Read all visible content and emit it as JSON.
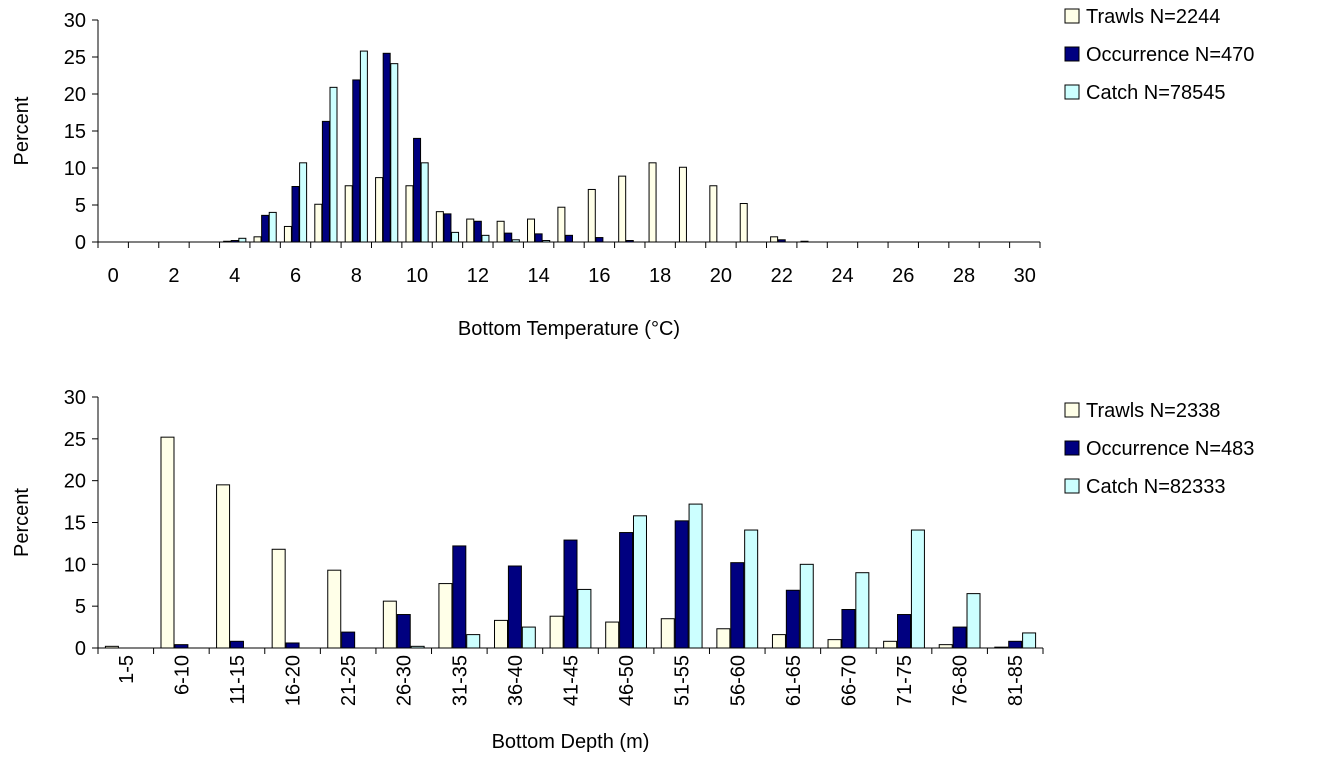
{
  "chart_data": [
    {
      "type": "bar",
      "title": "",
      "xlabel": "Bottom Temperature (°C)",
      "ylabel": "Percent",
      "ylim": [
        0,
        30
      ],
      "yticks": [
        0,
        5,
        10,
        15,
        20,
        25,
        30
      ],
      "xticks": [
        "0",
        "2",
        "4",
        "6",
        "8",
        "10",
        "12",
        "14",
        "16",
        "18",
        "20",
        "22",
        "24",
        "26",
        "28",
        "30"
      ],
      "categories": [
        "0",
        "1",
        "2",
        "3",
        "4",
        "5",
        "6",
        "7",
        "8",
        "9",
        "10",
        "11",
        "12",
        "13",
        "14",
        "15",
        "16",
        "17",
        "18",
        "19",
        "20",
        "21",
        "22",
        "23",
        "24",
        "25",
        "26",
        "27",
        "28",
        "29",
        "30"
      ],
      "grid": false,
      "legend_position": "top-right",
      "series": [
        {
          "name": "Trawls N=2244",
          "color": "#ffffe8",
          "values": [
            0,
            0,
            0,
            0,
            0.1,
            0.7,
            2.1,
            5.1,
            7.6,
            8.7,
            7.6,
            4.1,
            3.1,
            2.8,
            3.1,
            4.7,
            7.1,
            8.9,
            10.7,
            10.1,
            7.6,
            5.2,
            0.7,
            0.1,
            0,
            0,
            0,
            0,
            0,
            0,
            0
          ]
        },
        {
          "name": "Occurrence N=470",
          "color": "#000080",
          "values": [
            0,
            0,
            0,
            0,
            0.2,
            3.6,
            7.5,
            16.3,
            21.9,
            25.5,
            14.0,
            3.8,
            2.8,
            1.2,
            1.1,
            0.9,
            0.6,
            0.2,
            0,
            0,
            0,
            0,
            0.3,
            0,
            0,
            0,
            0,
            0,
            0,
            0,
            0
          ]
        },
        {
          "name": "Catch N=78545",
          "color": "#ccffff",
          "values": [
            0,
            0,
            0,
            0,
            0.5,
            4.0,
            10.7,
            20.9,
            25.8,
            24.1,
            10.7,
            1.3,
            0.9,
            0.3,
            0.2,
            0,
            0,
            0,
            0,
            0,
            0,
            0,
            0,
            0,
            0,
            0,
            0,
            0,
            0,
            0,
            0
          ]
        }
      ]
    },
    {
      "type": "bar",
      "title": "",
      "xlabel": "Bottom Depth (m)",
      "ylabel": "Percent",
      "ylim": [
        0,
        30
      ],
      "yticks": [
        0,
        5,
        10,
        15,
        20,
        25,
        30
      ],
      "categories": [
        "1-5",
        "6-10",
        "11-15",
        "16-20",
        "21-25",
        "26-30",
        "31-35",
        "36-40",
        "41-45",
        "46-50",
        "51-55",
        "56-60",
        "61-65",
        "66-70",
        "71-75",
        "76-80",
        "81-85"
      ],
      "grid": false,
      "legend_position": "top-right",
      "series": [
        {
          "name": "Trawls N=2338",
          "color": "#ffffe8",
          "values": [
            0.2,
            25.2,
            19.5,
            11.8,
            9.3,
            5.6,
            7.7,
            3.3,
            3.8,
            3.1,
            3.5,
            2.3,
            1.6,
            1.0,
            0.8,
            0.4,
            0.1
          ]
        },
        {
          "name": "Occurrence N=483",
          "color": "#000080",
          "values": [
            0,
            0.4,
            0.8,
            0.6,
            1.9,
            4.0,
            12.2,
            9.8,
            12.9,
            13.8,
            15.2,
            10.2,
            6.9,
            4.6,
            4.0,
            2.5,
            0.8
          ]
        },
        {
          "name": "Catch N=82333",
          "color": "#ccffff",
          "values": [
            0,
            0,
            0,
            0,
            0,
            0.2,
            1.6,
            2.5,
            7.0,
            15.8,
            17.2,
            14.1,
            10.0,
            9.0,
            14.1,
            6.5,
            1.8
          ]
        }
      ]
    }
  ]
}
